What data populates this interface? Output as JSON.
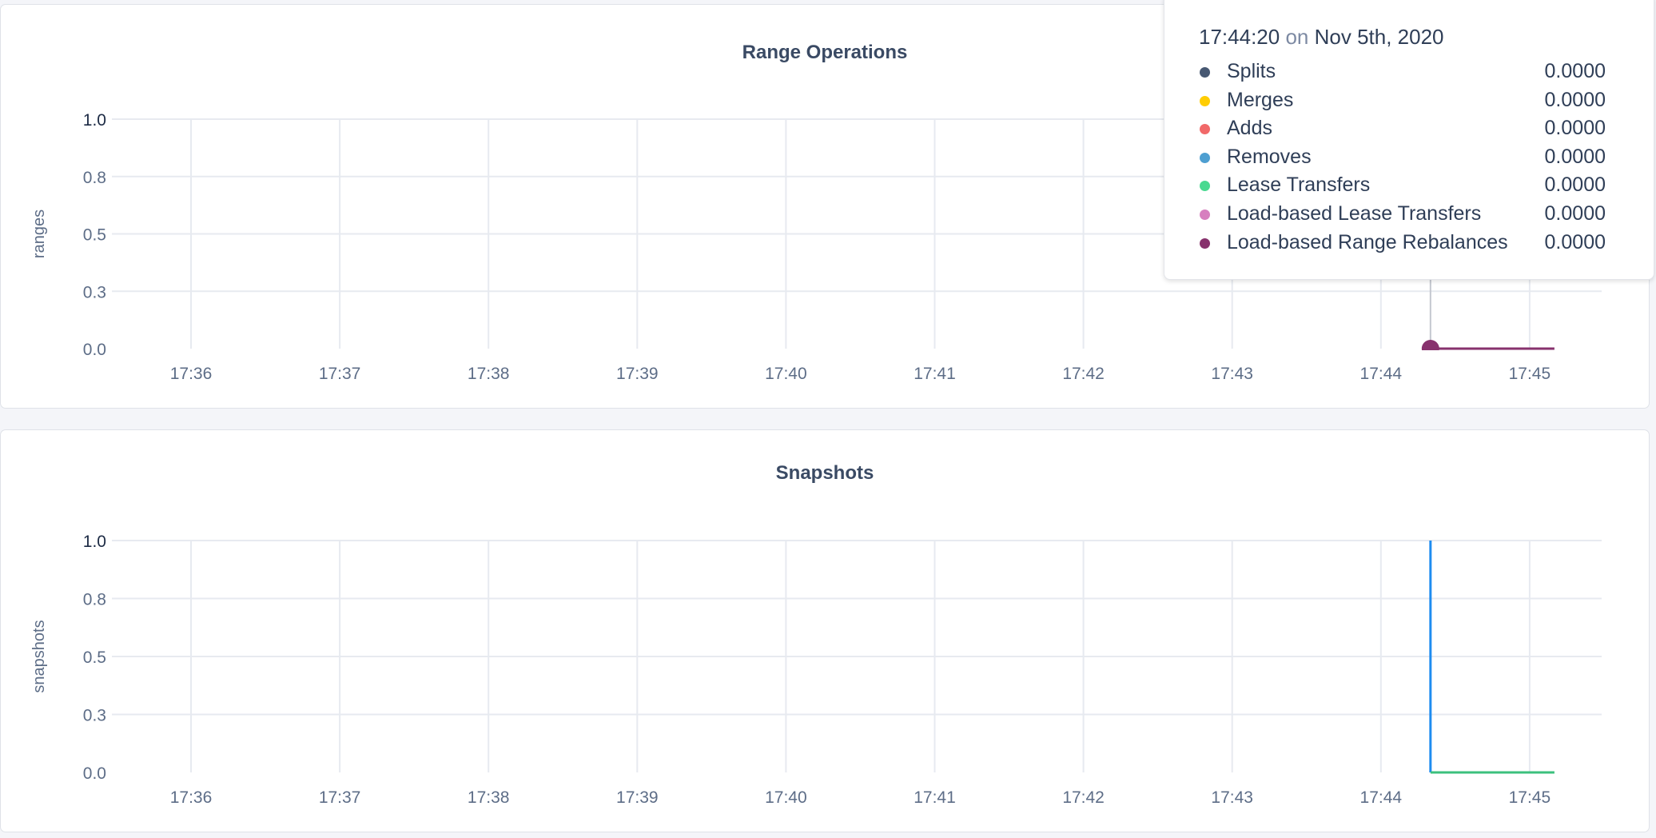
{
  "charts": [
    {
      "title": "Range Operations",
      "ylabel": "ranges",
      "type": "line",
      "yticks": [
        "0.0",
        "0.3",
        "0.5",
        "0.8",
        "1.0"
      ],
      "ylim": [
        0,
        1
      ],
      "xticks": [
        "17:36",
        "17:37",
        "17:38",
        "17:39",
        "17:40",
        "17:41",
        "17:42",
        "17:43",
        "17:44",
        "17:45"
      ],
      "grid": true,
      "series": [
        {
          "name": "Load-based Range Rebalances",
          "color": "#87326d",
          "points": [
            [
              "17:44:20",
              0
            ],
            [
              "17:45:10",
              0
            ]
          ]
        }
      ],
      "hover": {
        "time": "17:44:20",
        "marker_color": "#87326d"
      }
    },
    {
      "title": "Snapshots",
      "ylabel": "snapshots",
      "type": "line",
      "yticks": [
        "0.0",
        "0.3",
        "0.5",
        "0.8",
        "1.0"
      ],
      "ylim": [
        0,
        1
      ],
      "xticks": [
        "17:36",
        "17:37",
        "17:38",
        "17:39",
        "17:40",
        "17:41",
        "17:42",
        "17:43",
        "17:44",
        "17:45"
      ],
      "grid": true,
      "series": [
        {
          "color": "#1e8cf0",
          "points": [
            [
              "17:44:20",
              1
            ],
            [
              "17:44:20",
              0
            ]
          ]
        },
        {
          "color": "#3cc07d",
          "points": [
            [
              "17:44:20",
              0
            ],
            [
              "17:45:10",
              0
            ]
          ]
        }
      ]
    }
  ],
  "tooltip": {
    "time": "17:44:20",
    "on": "on",
    "date": "Nov 5th, 2020",
    "rows": [
      {
        "label": "Splits",
        "value": "0.0000",
        "color": "#475872"
      },
      {
        "label": "Merges",
        "value": "0.0000",
        "color": "#ffcd02"
      },
      {
        "label": "Adds",
        "value": "0.0000",
        "color": "#f16969"
      },
      {
        "label": "Removes",
        "value": "0.0000",
        "color": "#4e9fd1"
      },
      {
        "label": "Lease Transfers",
        "value": "0.0000",
        "color": "#49d990"
      },
      {
        "label": "Load-based Lease Transfers",
        "value": "0.0000",
        "color": "#d77fbf"
      },
      {
        "label": "Load-based Range Rebalances",
        "value": "0.0000",
        "color": "#87326d"
      }
    ]
  }
}
